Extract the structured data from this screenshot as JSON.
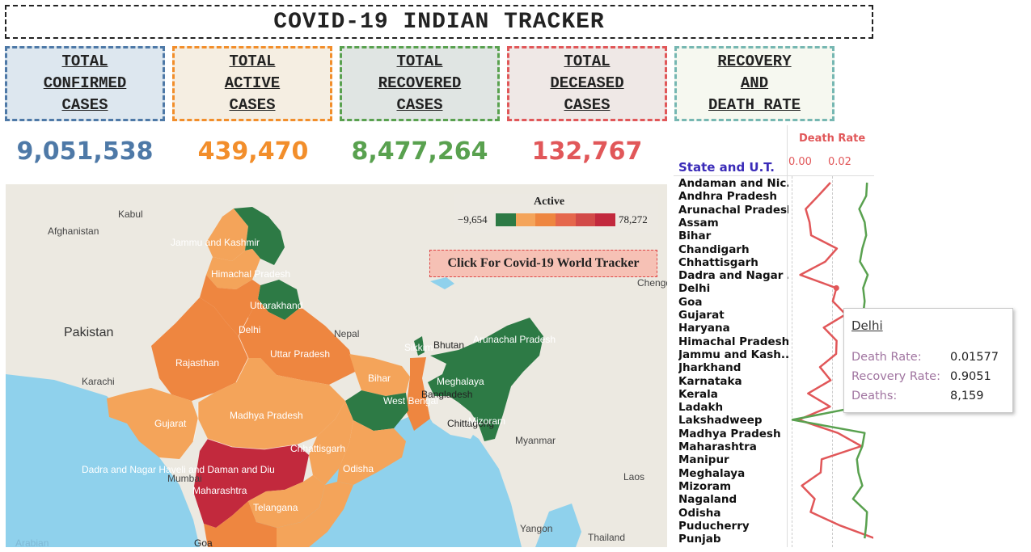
{
  "header": {
    "title": "COVID-19 INDIAN TRACKER"
  },
  "cards": [
    {
      "lines": [
        "TOTAL",
        "CONFIRMED",
        "CASES"
      ],
      "value": "9,051,538",
      "color": "#4e79a7",
      "bg": "#dde7ef"
    },
    {
      "lines": [
        "TOTAL",
        "ACTIVE",
        "CASES"
      ],
      "value": "439,470",
      "color": "#f28e2b",
      "bg": "#f5eee2"
    },
    {
      "lines": [
        "TOTAL",
        "RECOVERED",
        "CASES"
      ],
      "value": "8,477,264",
      "color": "#59a14f",
      "bg": "#e0e5e3"
    },
    {
      "lines": [
        "TOTAL",
        "DECEASED",
        "CASES"
      ],
      "value": "132,767",
      "color": "#e15759",
      "bg": "#efe8e6"
    },
    {
      "lines": [
        "RECOVERY",
        "AND",
        "DEATH RATE"
      ],
      "value": "",
      "color": "#76b7b2",
      "bg": "#f6f8f0"
    }
  ],
  "map": {
    "legend": {
      "title": "Active",
      "min": "−9,654",
      "max": "78,272"
    },
    "colors": {
      "green": "#2d7a45",
      "light": "#f4a45a",
      "mid": "#ee8640",
      "dark": "#c2293d",
      "water": "#8fd1ec",
      "land": "#ece9e1"
    },
    "world_button": "Click For Covid-19 World Tracker",
    "places": [
      "Kabul",
      "Afghanistan",
      "Pakistan",
      "Karachi",
      "Nepal",
      "Bhutan",
      "Bangladesh",
      "Chittagong",
      "Myanmar",
      "Laos",
      "Thailand",
      "Yangon",
      "Chengdu",
      "Mumbai",
      "Arabian",
      "Goa"
    ],
    "states": [
      "Jammu and Kashmir",
      "Himachal Pradesh",
      "Uttarakhand",
      "Delhi",
      "Rajasthan",
      "Uttar Pradesh",
      "Bihar",
      "Sikkim",
      "Arunachal Pradesh",
      "Meghalaya",
      "West Bengal",
      "Gujarat",
      "Madhya Pradesh",
      "Mizoram",
      "Chhattisgarh",
      "Dadra and Nagar Haveli and Daman and Diu",
      "Odisha",
      "Maharashtra",
      "Telangana"
    ]
  },
  "rates": {
    "header": "State and U.T.",
    "measure": "Death Rate",
    "ticks": [
      "0.00",
      "0.02"
    ],
    "states": [
      "Andaman and Nic..",
      "Andhra Pradesh",
      "Arunachal Pradesh",
      "Assam",
      "Bihar",
      "Chandigarh",
      "Chhattisgarh",
      "Dadra and Nagar ..",
      "Delhi",
      "Goa",
      "Gujarat",
      "Haryana",
      "Himachal Pradesh",
      "Jammu and Kash..",
      "Jharkhand",
      "Karnataka",
      "Kerala",
      "Ladakh",
      "Lakshadweep",
      "Madhya Pradesh",
      "Maharashtra",
      "Manipur",
      "Meghalaya",
      "Mizoram",
      "Nagaland",
      "Odisha",
      "Puducherry",
      "Punjab"
    ],
    "chart_data": {
      "type": "line",
      "x": [
        "Andaman and Nic..",
        "Andhra Pradesh",
        "Arunachal Pradesh",
        "Assam",
        "Bihar",
        "Chandigarh",
        "Chhattisgarh",
        "Dadra and Nagar ..",
        "Delhi",
        "Goa",
        "Gujarat",
        "Haryana",
        "Himachal Pradesh",
        "Jammu and Kash..",
        "Jharkhand",
        "Karnataka",
        "Kerala",
        "Ladakh",
        "Lakshadweep",
        "Madhya Pradesh",
        "Maharashtra",
        "Manipur",
        "Meghalaya",
        "Mizoram",
        "Nagaland",
        "Odisha",
        "Puducherry",
        "Punjab"
      ],
      "series": [
        {
          "name": "Death Rate",
          "color": "#e15759",
          "values": [
            0.0133,
            0.0082,
            0.0029,
            0.0045,
            0.0052,
            0.016,
            0.0111,
            0.0006,
            0.0158,
            0.0143,
            0.0197,
            0.0105,
            0.0159,
            0.0157,
            0.0089,
            0.0134,
            0.0039,
            0.0131,
            0.0,
            0.0164,
            0.0263,
            0.0096,
            0.0092,
            0.0013,
            0.0067,
            0.005,
            0.017,
            0.032
          ]
        },
        {
          "name": "Recovery Rate",
          "color": "#59a14f",
          "values": [
            0.96,
            0.95,
            0.86,
            0.93,
            0.95,
            0.9,
            0.87,
            0.97,
            0.91,
            0.93,
            0.91,
            0.91,
            0.86,
            0.87,
            0.95,
            0.94,
            0.85,
            0.87,
            0.0,
            0.93,
            0.9,
            0.83,
            0.85,
            0.9,
            0.78,
            0.96,
            0.95,
            0.93
          ]
        }
      ],
      "ylabel": "Death Rate",
      "ylim": [
        -0.003,
        0.031
      ]
    }
  },
  "tooltip": {
    "title": "Delhi",
    "rows": [
      {
        "label": "Death Rate:",
        "value": "0.01577"
      },
      {
        "label": "Recovery Rate:",
        "value": "0.9051"
      },
      {
        "label": "Deaths:",
        "value": "8,159"
      }
    ]
  }
}
